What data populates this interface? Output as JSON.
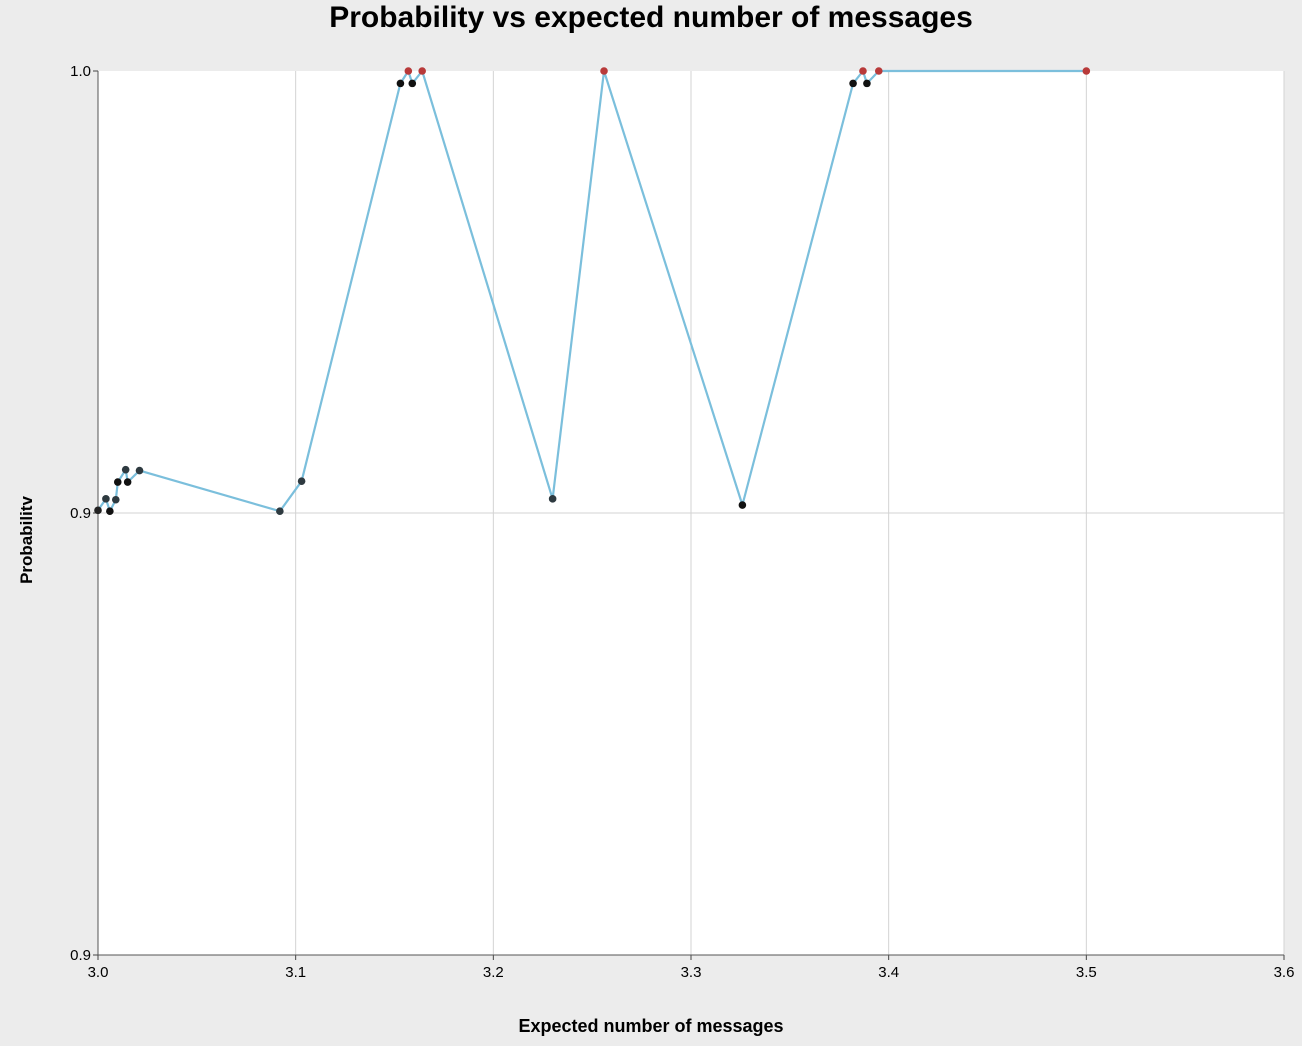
{
  "chart_data": {
    "type": "line",
    "title": "Probability vs expected number of messages",
    "xlabel": "Expected number of messages",
    "ylabel": "Probabilitv",
    "xlim": [
      3.0,
      3.6
    ],
    "ylim": [
      0.9,
      1.0
    ],
    "x_ticks": [
      "3.0",
      "3.1",
      "3.2",
      "3.3",
      "3.4",
      "3.5",
      "3.6"
    ],
    "y_ticks": [
      {
        "value": 0.9,
        "label": "0.9"
      },
      {
        "value": 0.95,
        "label": "0.9"
      },
      {
        "value": 1.0,
        "label": "1.0"
      }
    ],
    "grid": true,
    "line_color": "#7bbfdc",
    "background": "#ffffff",
    "series": [
      {
        "points": [
          {
            "x": 3.0,
            "y": 0.9503,
            "color": "#222222"
          },
          {
            "x": 3.004,
            "y": 0.9516,
            "color": "#2e3a40"
          },
          {
            "x": 3.006,
            "y": 0.9502,
            "color": "#111111"
          },
          {
            "x": 3.009,
            "y": 0.9515,
            "color": "#2e3a40"
          },
          {
            "x": 3.01,
            "y": 0.9535,
            "color": "#111111"
          },
          {
            "x": 3.014,
            "y": 0.9549,
            "color": "#2e3a40"
          },
          {
            "x": 3.015,
            "y": 0.9535,
            "color": "#111111"
          },
          {
            "x": 3.021,
            "y": 0.9548,
            "color": "#2e3a40"
          },
          {
            "x": 3.092,
            "y": 0.9502,
            "color": "#2e3a40"
          },
          {
            "x": 3.103,
            "y": 0.9536,
            "color": "#2e3a40"
          },
          {
            "x": 3.153,
            "y": 0.9986,
            "color": "#111111"
          },
          {
            "x": 3.157,
            "y": 1.0,
            "color": "#b83a3a"
          },
          {
            "x": 3.159,
            "y": 0.9986,
            "color": "#111111"
          },
          {
            "x": 3.164,
            "y": 1.0,
            "color": "#b83a3a"
          },
          {
            "x": 3.23,
            "y": 0.9516,
            "color": "#2e3a40"
          },
          {
            "x": 3.256,
            "y": 1.0,
            "color": "#b83a3a"
          },
          {
            "x": 3.326,
            "y": 0.9509,
            "color": "#111111"
          },
          {
            "x": 3.382,
            "y": 0.9986,
            "color": "#111111"
          },
          {
            "x": 3.387,
            "y": 1.0,
            "color": "#b83a3a"
          },
          {
            "x": 3.389,
            "y": 0.9986,
            "color": "#111111"
          },
          {
            "x": 3.395,
            "y": 1.0,
            "color": "#b83a3a"
          },
          {
            "x": 3.5,
            "y": 1.0,
            "color": "#b83a3a"
          }
        ]
      }
    ]
  }
}
